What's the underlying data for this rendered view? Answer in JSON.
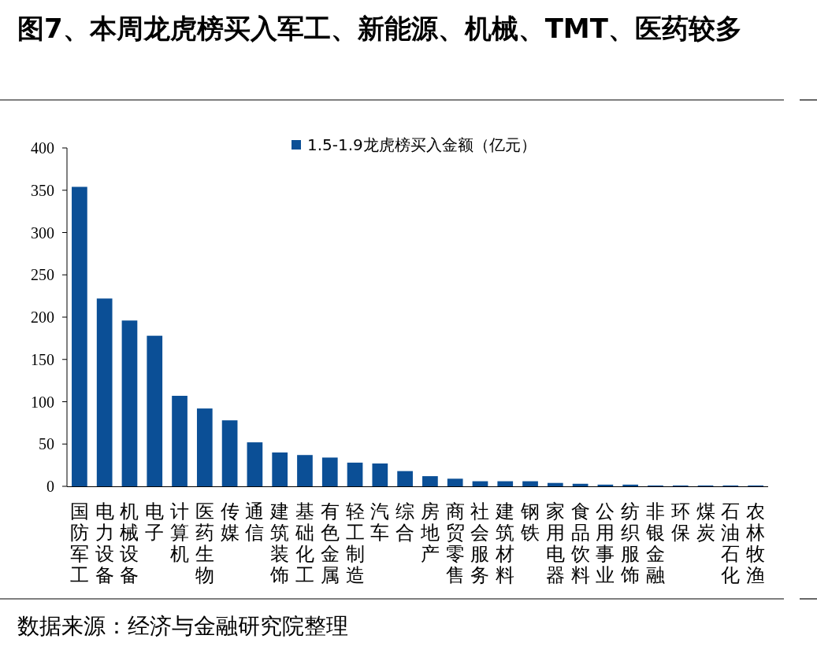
{
  "chart_data": {
    "type": "bar",
    "title": "图7、本周龙虎榜买入军工、新能源、机械、TMT、医药较多",
    "categories": [
      "国防军工",
      "电力设备",
      "机械设备",
      "电子",
      "计算机",
      "医药生物",
      "传媒",
      "通信",
      "建筑装饰",
      "基础化工",
      "有色金属",
      "轻工制造",
      "汽车",
      "综合",
      "房地产",
      "商贸零售",
      "社会服务",
      "建筑材料",
      "钢铁",
      "家用电器",
      "食品饮料",
      "公用事业",
      "纺织服饰",
      "非银金融",
      "环保",
      "煤炭",
      "石油石化",
      "农林牧渔"
    ],
    "series": [
      {
        "name": "1.5-1.9龙虎榜买入金额（亿元）",
        "color": "#0b4f96",
        "values": [
          354,
          222,
          196,
          178,
          107,
          92,
          78,
          52,
          40,
          37,
          34,
          28,
          27,
          18,
          12,
          9,
          6,
          6,
          6,
          4,
          3,
          2,
          2,
          1,
          1,
          1,
          1,
          1
        ]
      }
    ],
    "ylim": [
      0,
      400
    ],
    "yticks": [
      0,
      50,
      100,
      150,
      200,
      250,
      300,
      350,
      400
    ],
    "legend": "top",
    "grid": false,
    "annotations": [
      "数据来源：经济与金融研究院整理"
    ]
  }
}
